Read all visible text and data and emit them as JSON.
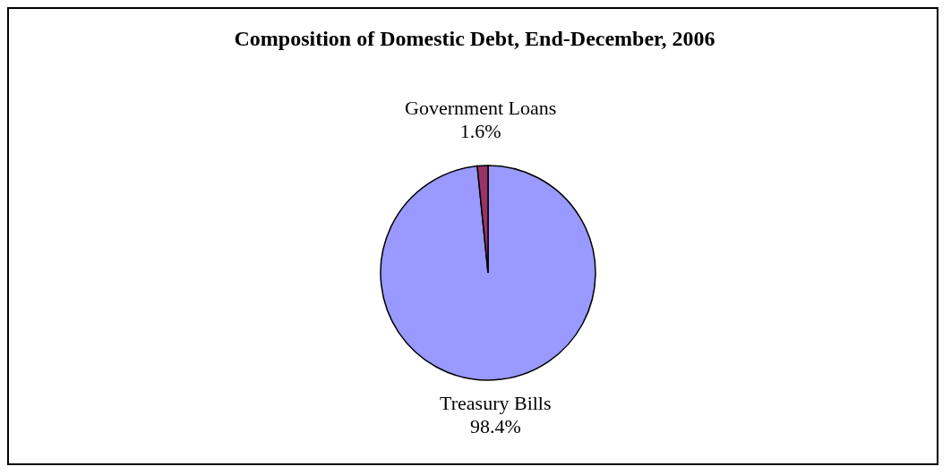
{
  "chart_data": {
    "type": "pie",
    "title": "Composition of Domestic Debt, End-December, 2006",
    "categories": [
      "Treasury Bills",
      "Government Loans"
    ],
    "values": [
      98.4,
      1.6
    ],
    "colors": [
      "#9999ff",
      "#993366"
    ],
    "value_labels": [
      "98.4%",
      "1.6%"
    ],
    "legend": false
  }
}
